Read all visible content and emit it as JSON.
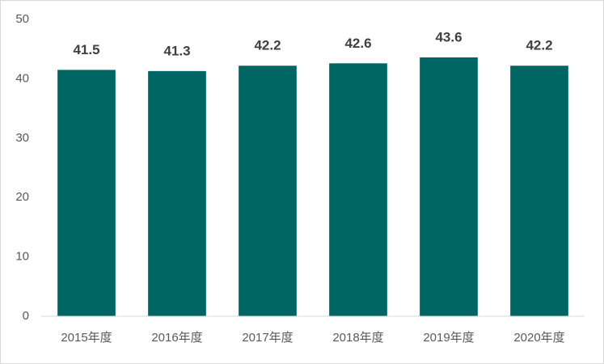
{
  "chart_data": {
    "type": "bar",
    "categories": [
      "2015年度",
      "2016年度",
      "2017年度",
      "2018年度",
      "2019年度",
      "2020年度"
    ],
    "values": [
      41.5,
      41.3,
      42.2,
      42.6,
      43.6,
      42.2
    ],
    "color": "#006663",
    "ylim": [
      0,
      50
    ],
    "yticks": [
      0,
      10,
      20,
      30,
      40,
      50
    ],
    "grid": false
  }
}
